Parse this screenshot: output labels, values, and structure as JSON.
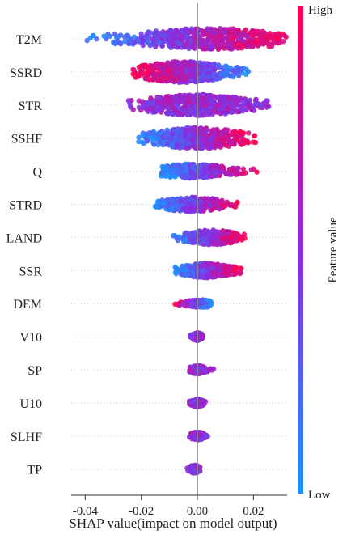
{
  "chart_data": {
    "type": "scatter",
    "subtype": "shap-beeswarm",
    "xlabel": "SHAP value(impact on model output)",
    "xlim": [
      -0.045,
      0.032
    ],
    "xticks": [
      -0.04,
      -0.02,
      0.0,
      0.02
    ],
    "xtick_labels": [
      "-0.04",
      "-0.02",
      "0.00",
      "0.02"
    ],
    "features": [
      "T2M",
      "SSRD",
      "STR",
      "SSHF",
      "Q",
      "STRD",
      "LAND",
      "SSR",
      "DEM",
      "V10",
      "SP",
      "U10",
      "SLHF",
      "TP"
    ],
    "zero_line": true,
    "grid": false,
    "colorbar": {
      "label": "Feature value",
      "high_label": "High",
      "low_label": "Low",
      "low_color": "#1e90ff",
      "mid_color": "#8a2be2",
      "high_color": "#ff0050",
      "placement": "right"
    },
    "distributions": [
      {
        "feature": "T2M",
        "min": -0.042,
        "max": 0.032,
        "median": 0.005,
        "spread_width": "wide",
        "color_trend": "low negative, high positive"
      },
      {
        "feature": "SSRD",
        "min": -0.023,
        "max": 0.02,
        "median": -0.005,
        "spread_width": "wide",
        "color_trend": "high negative, low positive"
      },
      {
        "feature": "STR",
        "min": -0.025,
        "max": 0.026,
        "median": 0.0,
        "spread_width": "wide",
        "color_trend": "mixed"
      },
      {
        "feature": "SSHF",
        "min": -0.022,
        "max": 0.022,
        "median": 0.0,
        "spread_width": "wide",
        "color_trend": "low negative, high positive"
      },
      {
        "feature": "Q",
        "min": -0.013,
        "max": 0.022,
        "median": -0.002,
        "spread_width": "medium",
        "color_trend": "low negative, high positive"
      },
      {
        "feature": "STRD",
        "min": -0.015,
        "max": 0.016,
        "median": -0.002,
        "spread_width": "medium",
        "color_trend": "low negative, high positive"
      },
      {
        "feature": "LAND",
        "min": -0.009,
        "max": 0.017,
        "median": 0.005,
        "spread_width": "medium",
        "color_trend": "low negative, high positive"
      },
      {
        "feature": "SSR",
        "min": -0.008,
        "max": 0.016,
        "median": 0.003,
        "spread_width": "medium",
        "color_trend": "low negative, high positive"
      },
      {
        "feature": "DEM",
        "min": -0.009,
        "max": 0.005,
        "median": 0.001,
        "spread_width": "narrow",
        "color_trend": "high negative, low positive"
      },
      {
        "feature": "V10",
        "min": -0.003,
        "max": 0.002,
        "median": 0.0,
        "spread_width": "narrow",
        "color_trend": "mixed"
      },
      {
        "feature": "SP",
        "min": -0.003,
        "max": 0.006,
        "median": 0.0,
        "spread_width": "narrow",
        "color_trend": "mixed"
      },
      {
        "feature": "U10",
        "min": -0.003,
        "max": 0.003,
        "median": 0.0,
        "spread_width": "narrow",
        "color_trend": "mixed"
      },
      {
        "feature": "SLHF",
        "min": -0.003,
        "max": 0.004,
        "median": 0.0,
        "spread_width": "narrow",
        "color_trend": "mixed"
      },
      {
        "feature": "TP",
        "min": -0.004,
        "max": 0.001,
        "median": -0.001,
        "spread_width": "narrow",
        "color_trend": "mixed"
      }
    ]
  }
}
